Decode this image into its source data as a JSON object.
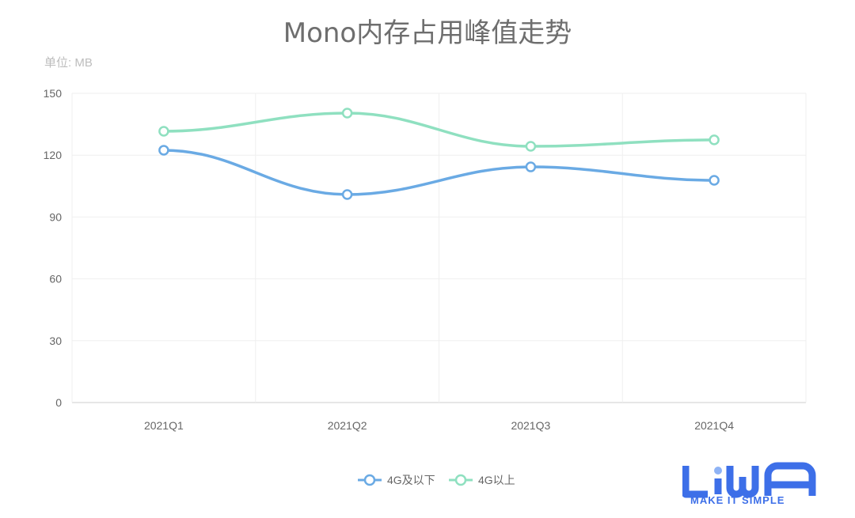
{
  "chart_data": {
    "type": "line",
    "title": "Mono内存占用峰值走势",
    "ylabel": "单位: MB",
    "xlabel": "",
    "categories": [
      "2021Q1",
      "2021Q2",
      "2021Q3",
      "2021Q4"
    ],
    "ylim": [
      0,
      150
    ],
    "yticks": [
      0,
      30,
      60,
      90,
      120,
      150
    ],
    "grid": true,
    "smooth": true,
    "legend_position": "bottom-center",
    "series": [
      {
        "name": "4G及以下",
        "color": "#6aaae4",
        "values": [
          122.4,
          100.9,
          114.3,
          107.8
        ]
      },
      {
        "name": "4G以上",
        "color": "#8fe0c0",
        "values": [
          131.6,
          140.4,
          124.3,
          127.4
        ]
      }
    ]
  },
  "logo": {
    "brand": "LiWA",
    "tagline": "MAKE IT SIMPLE",
    "color": "#3d6fe8"
  }
}
